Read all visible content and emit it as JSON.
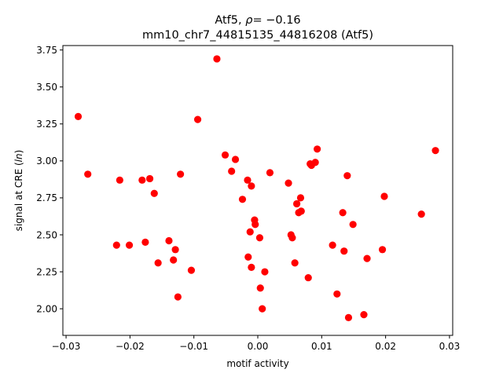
{
  "chart_data": {
    "type": "scatter",
    "title_line1": "Atf5, ρ= −0.16",
    "title_line2": "mm10_chr7_44815135_44816208 (Atf5)",
    "xlabel": "motif activity",
    "ylabel": "signal at CRE (ln)",
    "xlim": [
      -0.0305,
      0.0305
    ],
    "ylim": [
      1.82,
      3.78
    ],
    "xticks": [
      -0.03,
      -0.02,
      -0.01,
      0.0,
      0.01,
      0.02,
      0.03
    ],
    "xtick_labels": [
      "−0.03",
      "−0.02",
      "−0.01",
      "0.00",
      "0.01",
      "0.02",
      "0.03"
    ],
    "yticks": [
      2.0,
      2.25,
      2.5,
      2.75,
      3.0,
      3.25,
      3.5,
      3.75
    ],
    "ytick_labels": [
      "2.00",
      "2.25",
      "2.50",
      "2.75",
      "3.00",
      "3.25",
      "3.50",
      "3.75"
    ],
    "grid": false,
    "marker_color": "#ff0000",
    "points": [
      [
        -0.0281,
        3.3
      ],
      [
        -0.0266,
        2.91
      ],
      [
        -0.0221,
        2.43
      ],
      [
        -0.0216,
        2.87
      ],
      [
        -0.0201,
        2.43
      ],
      [
        -0.0181,
        2.87
      ],
      [
        -0.0176,
        2.45
      ],
      [
        -0.0169,
        2.88
      ],
      [
        -0.0162,
        2.78
      ],
      [
        -0.0156,
        2.31
      ],
      [
        -0.0139,
        2.46
      ],
      [
        -0.0132,
        2.33
      ],
      [
        -0.0129,
        2.4
      ],
      [
        -0.0125,
        2.08
      ],
      [
        -0.0121,
        2.91
      ],
      [
        -0.0104,
        2.26
      ],
      [
        -0.0094,
        3.28
      ],
      [
        -0.0064,
        3.69
      ],
      [
        -0.0051,
        3.04
      ],
      [
        -0.0041,
        2.93
      ],
      [
        -0.0035,
        3.01
      ],
      [
        -0.0024,
        2.74
      ],
      [
        -0.0016,
        2.87
      ],
      [
        -0.0015,
        2.35
      ],
      [
        -0.0012,
        2.52
      ],
      [
        -0.001,
        2.83
      ],
      [
        -0.001,
        2.28
      ],
      [
        -0.0005,
        2.6
      ],
      [
        -0.0004,
        2.57
      ],
      [
        0.0003,
        2.48
      ],
      [
        0.0004,
        2.14
      ],
      [
        0.0007,
        2.0
      ],
      [
        0.0011,
        2.25
      ],
      [
        0.0019,
        2.92
      ],
      [
        0.0048,
        2.85
      ],
      [
        0.0052,
        2.5
      ],
      [
        0.0054,
        2.48
      ],
      [
        0.0058,
        2.31
      ],
      [
        0.0061,
        2.71
      ],
      [
        0.0064,
        2.65
      ],
      [
        0.0067,
        2.75
      ],
      [
        0.0068,
        2.66
      ],
      [
        0.0079,
        2.21
      ],
      [
        0.0082,
        2.98
      ],
      [
        0.0084,
        2.97
      ],
      [
        0.009,
        2.99
      ],
      [
        0.0093,
        3.08
      ],
      [
        0.0117,
        2.43
      ],
      [
        0.0124,
        2.1
      ],
      [
        0.0133,
        2.65
      ],
      [
        0.0135,
        2.39
      ],
      [
        0.014,
        2.9
      ],
      [
        0.0142,
        1.94
      ],
      [
        0.0149,
        2.57
      ],
      [
        0.0166,
        1.96
      ],
      [
        0.0171,
        2.34
      ],
      [
        0.0195,
        2.4
      ],
      [
        0.0198,
        2.76
      ],
      [
        0.0256,
        2.64
      ],
      [
        0.0278,
        3.07
      ]
    ]
  }
}
